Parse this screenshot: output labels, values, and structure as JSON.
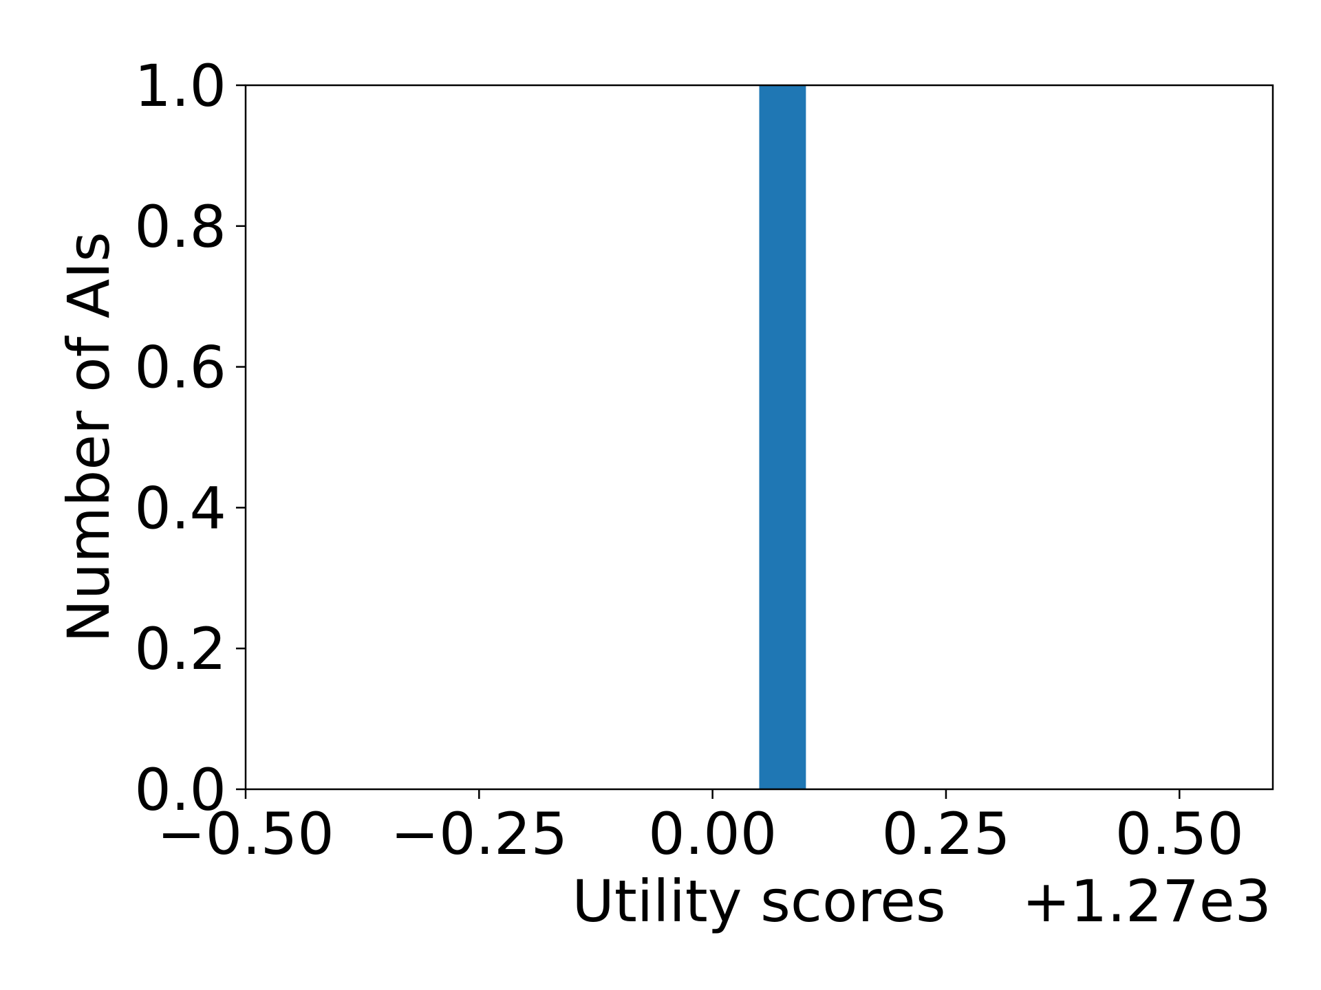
{
  "chart_data": {
    "type": "bar",
    "title": "",
    "xlabel": "Utility scores",
    "ylabel": "Number of AIs",
    "x_offset_label": "+1.27e3",
    "xlim": [
      -0.5,
      0.6
    ],
    "ylim": [
      0.0,
      1.0
    ],
    "x_ticks": [
      {
        "value": -0.5,
        "label": "−0.50"
      },
      {
        "value": -0.25,
        "label": "−0.25"
      },
      {
        "value": 0.0,
        "label": "0.00"
      },
      {
        "value": 0.25,
        "label": "0.25"
      },
      {
        "value": 0.5,
        "label": "0.50"
      }
    ],
    "y_ticks": [
      {
        "value": 0.0,
        "label": "0.0"
      },
      {
        "value": 0.2,
        "label": "0.2"
      },
      {
        "value": 0.4,
        "label": "0.4"
      },
      {
        "value": 0.6,
        "label": "0.6"
      },
      {
        "value": 0.8,
        "label": "0.8"
      },
      {
        "value": 1.0,
        "label": "1.0"
      }
    ],
    "bars": [
      {
        "x_start": 0.05,
        "x_end": 0.1,
        "value": 1.0
      }
    ],
    "bar_color": "#1f77b4",
    "grid": false,
    "legend": "none"
  }
}
